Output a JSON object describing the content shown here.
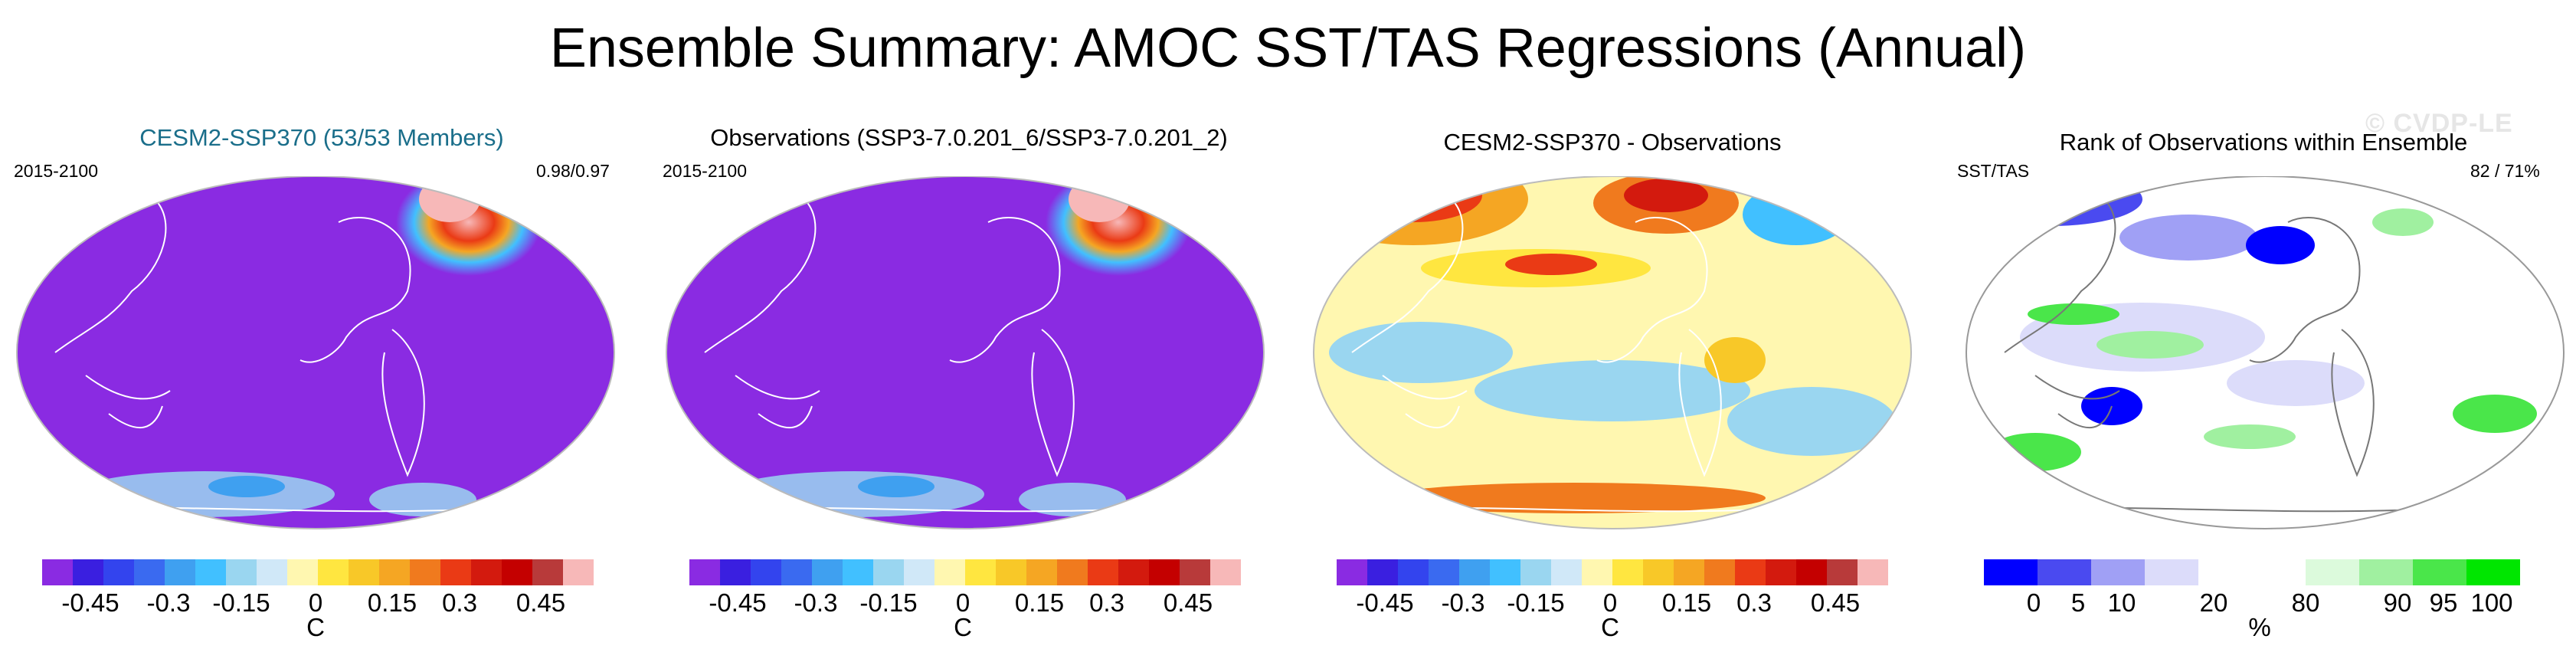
{
  "title": "Ensemble Summary: AMOC SST/TAS Regressions (Annual)",
  "watermark": "© CVDP-LE",
  "chart_data": [
    {
      "type": "heatmap",
      "title": "CESM2-SSP370 (53/53 Members)",
      "title_color": "#1a6e8a",
      "left_label": "2015-2100",
      "right_label": "0.98/0.97",
      "background_color": "#8a2be2",
      "features": [
        {
          "region": "North Atlantic",
          "value": 0.5
        },
        {
          "region": "Labrador Sea",
          "value": -0.3
        },
        {
          "region": "Southern Ocean",
          "value": -0.2
        }
      ],
      "colorbar": {
        "colors": [
          "#8a2be2",
          "#3a1fe0",
          "#3344ee",
          "#3a6af0",
          "#3fa0f0",
          "#41c0ff",
          "#9ad6f0",
          "#d0e8f8",
          "#fff7b0",
          "#ffe640",
          "#f8c828",
          "#f5a623",
          "#f07a1e",
          "#ea3a15",
          "#d31a0e",
          "#c40000",
          "#b83a3a",
          "#f7b8b8"
        ],
        "tick_labels": [
          "-0.45",
          "-0.3",
          "-0.15",
          "0",
          "0.15",
          "0.3",
          "0.45"
        ],
        "unit": "C"
      }
    },
    {
      "type": "heatmap",
      "title": "Observations (SSP3-7.0.201_6/SSP3-7.0.201_2)",
      "left_label": "2015-2100",
      "background_color": "#8a2be2",
      "features": [
        {
          "region": "North Atlantic",
          "value": 0.5
        },
        {
          "region": "Labrador Sea",
          "value": -0.3
        },
        {
          "region": "Southern Ocean",
          "value": -0.2
        }
      ],
      "colorbar": {
        "colors": [
          "#8a2be2",
          "#3a1fe0",
          "#3344ee",
          "#3a6af0",
          "#3fa0f0",
          "#41c0ff",
          "#9ad6f0",
          "#d0e8f8",
          "#fff7b0",
          "#ffe640",
          "#f8c828",
          "#f5a623",
          "#f07a1e",
          "#ea3a15",
          "#d31a0e",
          "#c40000",
          "#b83a3a",
          "#f7b8b8"
        ],
        "tick_labels": [
          "-0.45",
          "-0.3",
          "-0.15",
          "0",
          "0.15",
          "0.3",
          "0.45"
        ],
        "unit": "C"
      }
    },
    {
      "type": "heatmap",
      "title": "CESM2-SSP370 - Observations",
      "background_color": "#fff7b0",
      "features": [
        {
          "region": "North Pacific",
          "value": 0.3
        },
        {
          "region": "North Atlantic",
          "value": 0.3
        },
        {
          "region": "Tropical Pacific",
          "value": -0.05
        },
        {
          "region": "Southern Ocean",
          "value": 0.1
        }
      ],
      "colorbar": {
        "colors": [
          "#8a2be2",
          "#3a1fe0",
          "#3344ee",
          "#3a6af0",
          "#3fa0f0",
          "#41c0ff",
          "#9ad6f0",
          "#d0e8f8",
          "#fff7b0",
          "#ffe640",
          "#f8c828",
          "#f5a623",
          "#f07a1e",
          "#ea3a15",
          "#d31a0e",
          "#c40000",
          "#b83a3a",
          "#f7b8b8"
        ],
        "tick_labels": [
          "-0.45",
          "-0.3",
          "-0.15",
          "0",
          "0.15",
          "0.3",
          "0.45"
        ],
        "unit": "C"
      }
    },
    {
      "type": "heatmap",
      "title": "Rank of Observations within Ensemble",
      "left_label": "SST/TAS",
      "right_label": "82 /  71%",
      "background_color": "#ffffff",
      "colorbar": {
        "colors": [
          "#0000ff",
          "#4a4af0",
          "#a0a0f5",
          "#dcdcfa",
          "#ffffff",
          "#ffffff",
          "#dcfadc",
          "#a0f0a0",
          "#4ae64a",
          "#00e600"
        ],
        "tick_labels": [
          "0",
          "5",
          "10",
          "20",
          "80",
          "90",
          "95",
          "100"
        ],
        "unit": "%"
      }
    }
  ]
}
